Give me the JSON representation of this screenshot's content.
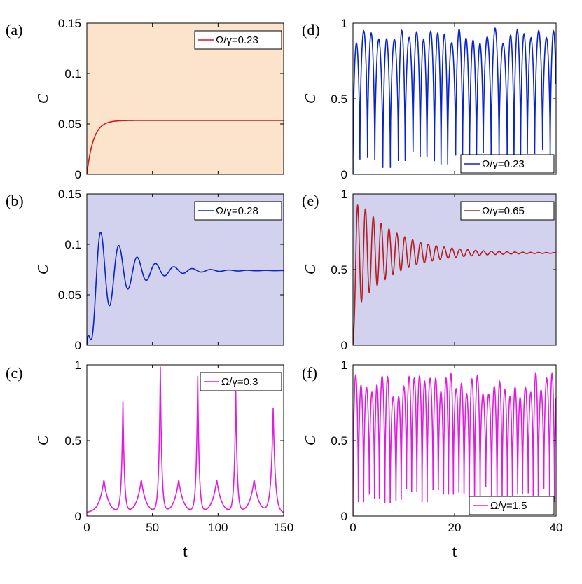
{
  "figure": {
    "colors": {
      "red": "#d7191c",
      "blue": "#0b24c9",
      "magenta": "#e11ce1",
      "darkred": "#b51d22",
      "bg_peach": "#fbe3cc",
      "bg_lavender": "#d2d2ee",
      "white": "#ffffff"
    }
  },
  "chart_data": [
    {
      "id": "a",
      "panel_label": "(a)",
      "type": "line",
      "title": "",
      "xlabel": "",
      "ylabel": "C",
      "xlim": [
        0,
        150
      ],
      "ylim": [
        0,
        0.15
      ],
      "xticks": [
        0,
        50,
        100,
        150
      ],
      "xtick_labels": [
        "",
        "",
        "",
        ""
      ],
      "yticks": [
        0,
        0.05,
        0.1,
        0.15
      ],
      "ytick_labels": [
        "0",
        "0.05",
        "0.1",
        "0.15"
      ],
      "grid": false,
      "background": "bg_peach",
      "legend_position": "top-right",
      "series": [
        {
          "name": "Ω/γ=0.23",
          "color": "red",
          "model": "saturate",
          "params": {
            "final": 0.0535,
            "rate": 0.2
          }
        }
      ]
    },
    {
      "id": "b",
      "panel_label": "(b)",
      "type": "line",
      "title": "",
      "xlabel": "",
      "ylabel": "C",
      "xlim": [
        0,
        150
      ],
      "ylim": [
        0,
        0.15
      ],
      "xticks": [
        0,
        50,
        100,
        150
      ],
      "xtick_labels": [
        "",
        "",
        "",
        ""
      ],
      "yticks": [
        0,
        0.05,
        0.1,
        0.15
      ],
      "ytick_labels": [
        "0",
        "0.05",
        "0.1",
        "0.15"
      ],
      "grid": false,
      "background": "bg_lavender",
      "legend_position": "top-right",
      "series": [
        {
          "name": "Ω/γ=0.28",
          "color": "blue",
          "model": "damped",
          "params": {
            "final": 0.074,
            "rise": 0.25,
            "amp": 0.075,
            "decay": 0.045,
            "period": 14,
            "peak": 10.5
          }
        }
      ]
    },
    {
      "id": "c",
      "panel_label": "(c)",
      "type": "line",
      "title": "",
      "xlabel": "t",
      "ylabel": "C",
      "xlim": [
        0,
        150
      ],
      "ylim": [
        0,
        1
      ],
      "xticks": [
        0,
        50,
        100,
        150
      ],
      "xtick_labels": [
        "0",
        "50",
        "100",
        "150"
      ],
      "yticks": [
        0,
        0.5,
        1
      ],
      "ytick_labels": [
        "0",
        "0.5",
        "1"
      ],
      "grid": false,
      "background": "white",
      "legend_position": "top-right",
      "series": [
        {
          "name": "Ω/γ=0.3",
          "color": "magenta",
          "model": "peaks",
          "params": {
            "base": 0.02,
            "peaks": [
              [
                13,
                0.24,
                3.5
              ],
              [
                27.5,
                0.75,
                1.1
              ],
              [
                41.5,
                0.24,
                3.5
              ],
              [
                56,
                0.98,
                1.1
              ],
              [
                70,
                0.24,
                3.5
              ],
              [
                84.5,
                0.92,
                1.1
              ],
              [
                99,
                0.24,
                3.5
              ],
              [
                113.5,
                0.82,
                1.1
              ],
              [
                127.5,
                0.24,
                3.5
              ],
              [
                142,
                0.71,
                1.6
              ]
            ]
          }
        }
      ]
    },
    {
      "id": "d",
      "panel_label": "(d)",
      "type": "line",
      "title": "",
      "xlabel": "",
      "ylabel": "C",
      "xlim": [
        0,
        40
      ],
      "ylim": [
        0,
        1
      ],
      "xticks": [
        0,
        20,
        40
      ],
      "xtick_labels": [
        "",
        "",
        ""
      ],
      "yticks": [
        0,
        0.5,
        1
      ],
      "ytick_labels": [
        "0",
        "0.5",
        "1"
      ],
      "grid": false,
      "background": "white",
      "legend_position": "bottom-right",
      "series": [
        {
          "name": "Ω/γ=0.23",
          "color": "blue",
          "model": "osc",
          "params": {
            "period": 1.45,
            "min": 0.04,
            "max": 0.98,
            "wobble": 0.1,
            "seed": 3
          }
        }
      ]
    },
    {
      "id": "e",
      "panel_label": "(e)",
      "type": "line",
      "title": "",
      "xlabel": "",
      "ylabel": "C",
      "xlim": [
        0,
        40
      ],
      "ylim": [
        0,
        1
      ],
      "xticks": [
        0,
        20,
        40
      ],
      "xtick_labels": [
        "",
        "",
        ""
      ],
      "yticks": [
        0,
        0.5,
        1
      ],
      "ytick_labels": [
        "0",
        "0.5",
        "1"
      ],
      "grid": false,
      "background": "bg_lavender",
      "legend_position": "top-right",
      "series": [
        {
          "name": "Ω/γ=0.65",
          "color": "darkred",
          "model": "damped",
          "params": {
            "final": 0.61,
            "rise": 3.5,
            "amp": 0.4,
            "decay": 0.13,
            "period": 1.55,
            "peak": 0.9
          }
        }
      ]
    },
    {
      "id": "f",
      "panel_label": "(f)",
      "type": "line",
      "title": "",
      "xlabel": "t",
      "ylabel": "C",
      "xlim": [
        0,
        40
      ],
      "ylim": [
        0,
        1
      ],
      "xticks": [
        0,
        20,
        40
      ],
      "xtick_labels": [
        "0",
        "20",
        "40"
      ],
      "yticks": [
        0,
        0.5,
        1
      ],
      "ytick_labels": [
        "0",
        "0.5",
        "1"
      ],
      "grid": false,
      "background": "white",
      "legend_position": "bottom-right",
      "series": [
        {
          "name": "Ω/γ=1.5",
          "color": "magenta",
          "model": "osc",
          "params": {
            "period": 1.05,
            "min": 0.08,
            "max": 0.95,
            "wobble": 0.14,
            "seed": 7
          }
        }
      ]
    }
  ]
}
